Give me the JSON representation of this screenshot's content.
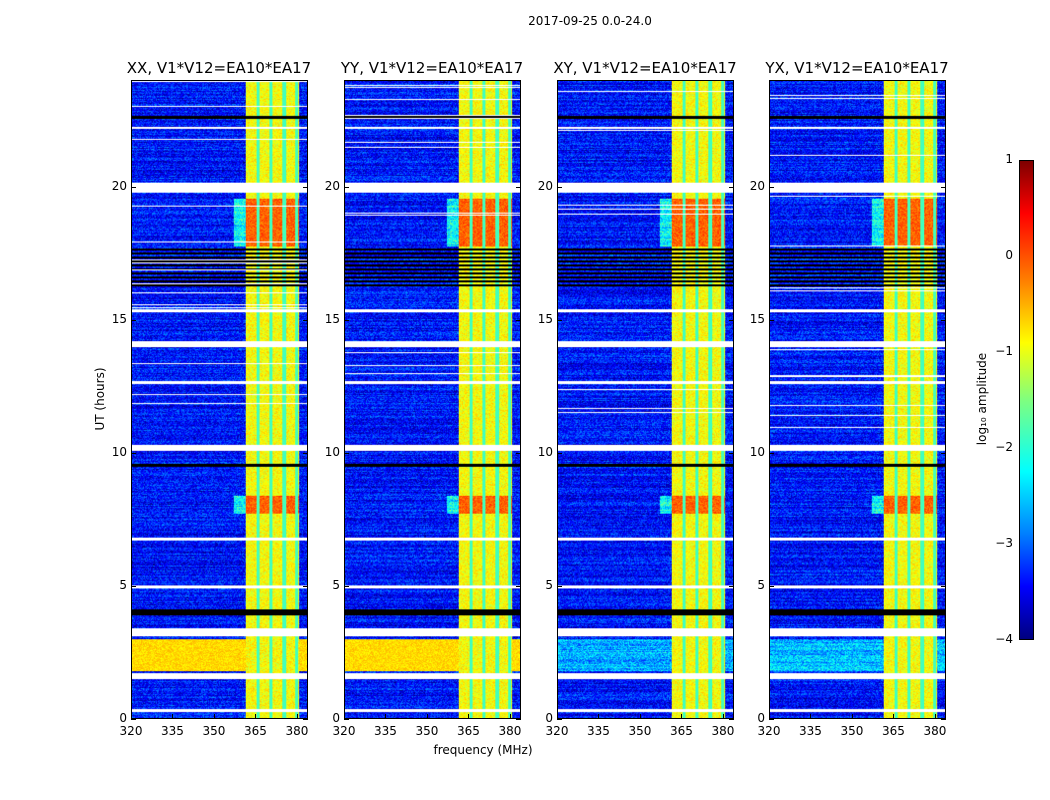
{
  "chart_data": {
    "type": "heatmap",
    "title": "2017-09-25 0.0-24.0",
    "xlabel": "frequency (MHz)",
    "ylabel": "UT (hours)",
    "xlim": [
      320,
      384
    ],
    "ylim": [
      0,
      24
    ],
    "xticks": [
      320,
      335,
      350,
      365,
      380
    ],
    "yticks": [
      0,
      5,
      10,
      15,
      20
    ],
    "panels": [
      {
        "title": "XX, V1*V12=EA10*EA17",
        "broadband_hours": [
          1.8,
          3.0
        ]
      },
      {
        "title": "YY, V1*V12=EA10*EA17",
        "broadband_hours": [
          1.8,
          3.0
        ]
      },
      {
        "title": "XY, V1*V12=EA10*EA17",
        "broadband_hours": null
      },
      {
        "title": "YX, V1*V12=EA10*EA17",
        "broadband_hours": null
      }
    ],
    "rfi_band_mhz": [
      361.5,
      381
    ],
    "rfi_gaps_mhz": [
      366,
      370.5,
      375.5,
      380
    ],
    "strong_hours": [
      [
        17.8,
        19.6
      ],
      [
        7.7,
        8.4
      ]
    ],
    "flagged_white_hours": [
      [
        19.8,
        20.2
      ],
      [
        14.0,
        14.2
      ],
      [
        10.1,
        10.3
      ],
      [
        4.9,
        5.0
      ],
      [
        3.1,
        3.4
      ],
      [
        1.5,
        1.7
      ],
      [
        0.25,
        0.35
      ],
      [
        22.2,
        22.3
      ],
      [
        15.3,
        15.4
      ],
      [
        12.6,
        12.7
      ],
      [
        6.7,
        6.8
      ]
    ],
    "flagged_black_hours": [
      [
        16.2,
        17.8
      ],
      [
        3.9,
        4.1
      ],
      [
        9.5,
        9.6
      ],
      [
        22.6,
        22.7
      ]
    ],
    "colorbar": {
      "label": "log₁₀ amplitude",
      "range": [
        -4,
        1
      ],
      "ticks": [
        -4,
        -3,
        -2,
        -1,
        0,
        1
      ],
      "colormap": "jet"
    }
  }
}
